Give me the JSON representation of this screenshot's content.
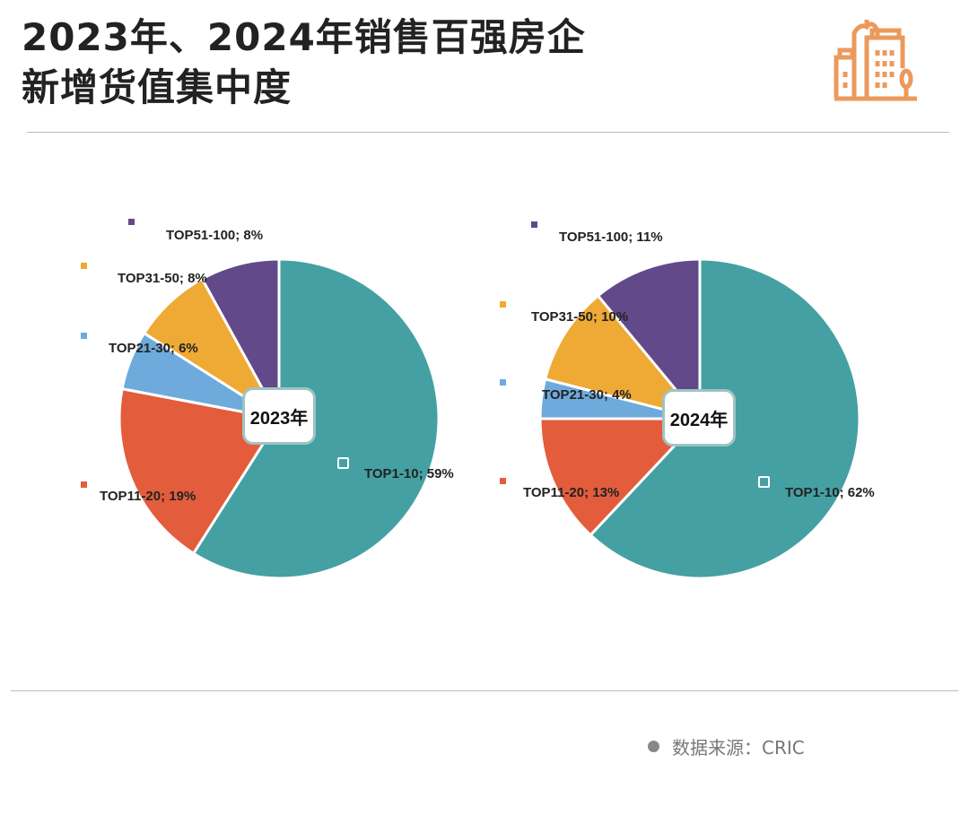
{
  "title": {
    "line1": "2023年、2024年销售百强房企",
    "line2": "新增货值集中度"
  },
  "source": {
    "label": "数据来源：CRIC"
  },
  "colors": {
    "TOP1-10": "#45a0a3",
    "TOP11-20": "#e35d3c",
    "TOP21-30": "#6eaadb",
    "TOP31-50": "#eeaa35",
    "TOP51-100": "#624a8a"
  },
  "chart_data": [
    {
      "type": "pie",
      "title": "2023年",
      "categories": [
        "TOP1-10",
        "TOP11-20",
        "TOP21-30",
        "TOP31-50",
        "TOP51-100"
      ],
      "values": [
        59,
        19,
        6,
        8,
        8
      ],
      "labels": [
        "TOP1-10; 59%",
        "TOP11-20; 19%",
        "TOP21-30; 6%",
        "TOP31-50; 8%",
        "TOP51-100; 8%"
      ]
    },
    {
      "type": "pie",
      "title": "2024年",
      "categories": [
        "TOP1-10",
        "TOP11-20",
        "TOP21-30",
        "TOP31-50",
        "TOP51-100"
      ],
      "values": [
        62,
        13,
        4,
        10,
        11
      ],
      "labels": [
        "TOP1-10; 62%",
        "TOP11-20; 13%",
        "TOP21-30; 4%",
        "TOP31-50; 10%",
        "TOP51-100; 11%"
      ]
    }
  ]
}
